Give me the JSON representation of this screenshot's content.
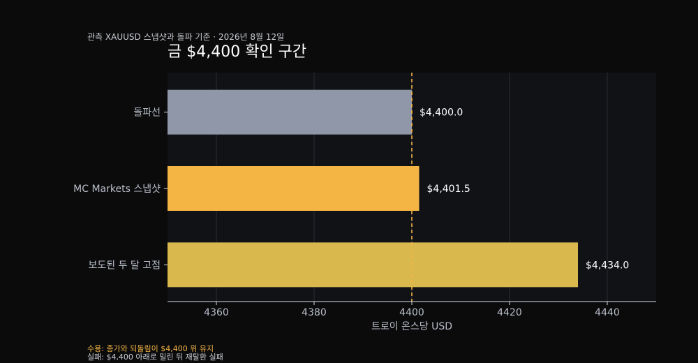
{
  "chart_data": {
    "type": "bar",
    "orientation": "horizontal",
    "subtitle": "관측 XAUUSD 스냅샷과 돌파 기준 · 2026년 8월 12일",
    "title": "금 $4,400 확인 구간",
    "xlabel": "트로이 온스당 USD",
    "ylabel": "",
    "xlim": [
      4350,
      4450
    ],
    "xticks": [
      4360,
      4380,
      4400,
      4420,
      4440
    ],
    "grid": true,
    "reference_line": {
      "value": 4400,
      "style": "dashed",
      "color": "#f4b544"
    },
    "categories": [
      "돌파선",
      "MC Markets 스냅샷",
      "보도된 두 달 고점"
    ],
    "values": [
      4400.0,
      4401.5,
      4434.0
    ],
    "value_labels": [
      "$4,400.0",
      "$4,401.5",
      "$4,434.0"
    ],
    "colors": [
      "#8f97a8",
      "#f4b544",
      "#d9b84e"
    ]
  },
  "footnotes": {
    "accept": "수용: 종가와 되돌림이 $4,400 위 유지",
    "fail": "실패: $4,400 아래로 밀린 뒤 재탈환 실패"
  },
  "theme": {
    "background": "#0b0b0c",
    "plot_background": "#111216",
    "accent": "#f4b544"
  }
}
